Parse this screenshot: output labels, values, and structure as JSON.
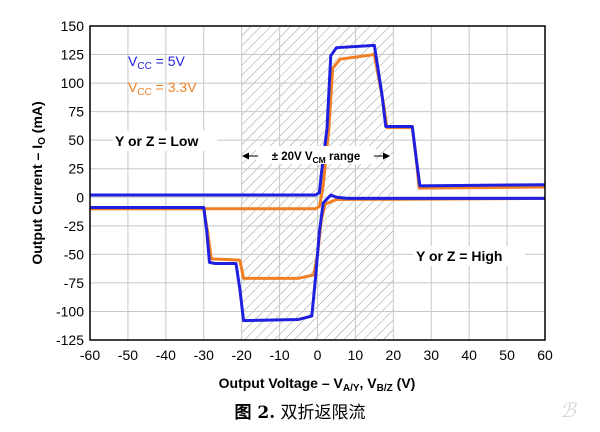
{
  "caption": {
    "label": "图 2.",
    "text": "双折返限流"
  },
  "watermark": "ℬ",
  "chart_data": {
    "type": "line",
    "xlabel_main": "Output Voltage – V",
    "xlabel_sub1": "A/Y",
    "xlabel_mid": ", V",
    "xlabel_sub2": "B/Z",
    "xlabel_end": " (V)",
    "ylabel_main": "Output Current – I",
    "ylabel_sub": "O",
    "ylabel_end": " (mA)",
    "xlim": [
      -60,
      60
    ],
    "ylim": [
      -125,
      150
    ],
    "xticks": [
      -60,
      -50,
      -40,
      -30,
      -20,
      -10,
      0,
      10,
      20,
      30,
      40,
      50,
      60
    ],
    "yticks": [
      -125,
      -100,
      -75,
      -50,
      -25,
      0,
      25,
      50,
      75,
      100,
      125,
      150
    ],
    "grid": true,
    "shaded_region": {
      "x": [
        -20,
        20
      ],
      "label_pre": "± 20V V",
      "label_sub": "CM",
      "label_post": " range"
    },
    "annotations": {
      "low": "Y or Z = Low",
      "high": "Y or Z = High"
    },
    "legend_position": "top-left",
    "series": [
      {
        "name_pre": "V",
        "name_sub": "CC",
        "name_post": " = 5V",
        "color": "#1f1fe0",
        "curves": [
          [
            [
              -60,
              2
            ],
            [
              -0.5,
              2
            ],
            [
              0.5,
              4
            ],
            [
              1,
              20
            ],
            [
              2.5,
              60
            ],
            [
              3.5,
              124
            ],
            [
              5,
              131
            ],
            [
              15,
              133
            ],
            [
              17,
              90
            ],
            [
              18,
              62
            ],
            [
              25,
              62
            ],
            [
              26,
              35
            ],
            [
              27,
              10
            ],
            [
              60,
              11
            ]
          ],
          [
            [
              -60,
              -9
            ],
            [
              -30,
              -9
            ],
            [
              -29.2,
              -30
            ],
            [
              -28.5,
              -57
            ],
            [
              -27,
              -58
            ],
            [
              -21.5,
              -58
            ],
            [
              -20.5,
              -80
            ],
            [
              -19.5,
              -108
            ],
            [
              -5,
              -107
            ],
            [
              -1.5,
              -104
            ],
            [
              -0.5,
              -70
            ],
            [
              0.5,
              -30
            ],
            [
              1.5,
              -5
            ],
            [
              3.5,
              2
            ],
            [
              5,
              0
            ],
            [
              8,
              -1
            ],
            [
              60,
              -1
            ]
          ]
        ]
      },
      {
        "name_pre": "V",
        "name_sub": "CC",
        "name_post": " = 3.3V",
        "color": "#f08024",
        "curves": [
          [
            [
              -60,
              -10
            ],
            [
              -0.5,
              -10
            ],
            [
              0.5,
              -8
            ],
            [
              1.5,
              10
            ],
            [
              3,
              60
            ],
            [
              4,
              113
            ],
            [
              6,
              121
            ],
            [
              15,
              125
            ],
            [
              17.5,
              80
            ],
            [
              18.3,
              61
            ],
            [
              25,
              61
            ],
            [
              26,
              35
            ],
            [
              26.8,
              8
            ],
            [
              60,
              9
            ]
          ],
          [
            [
              -60,
              -10
            ],
            [
              -30,
              -10
            ],
            [
              -29,
              -30
            ],
            [
              -28,
              -54
            ],
            [
              -20.5,
              -55
            ],
            [
              -19.5,
              -71
            ],
            [
              -5,
              -71
            ],
            [
              -1,
              -68
            ],
            [
              0,
              -50
            ],
            [
              1,
              -20
            ],
            [
              2,
              -6
            ],
            [
              5,
              -2
            ],
            [
              60,
              -1
            ]
          ]
        ]
      }
    ]
  }
}
